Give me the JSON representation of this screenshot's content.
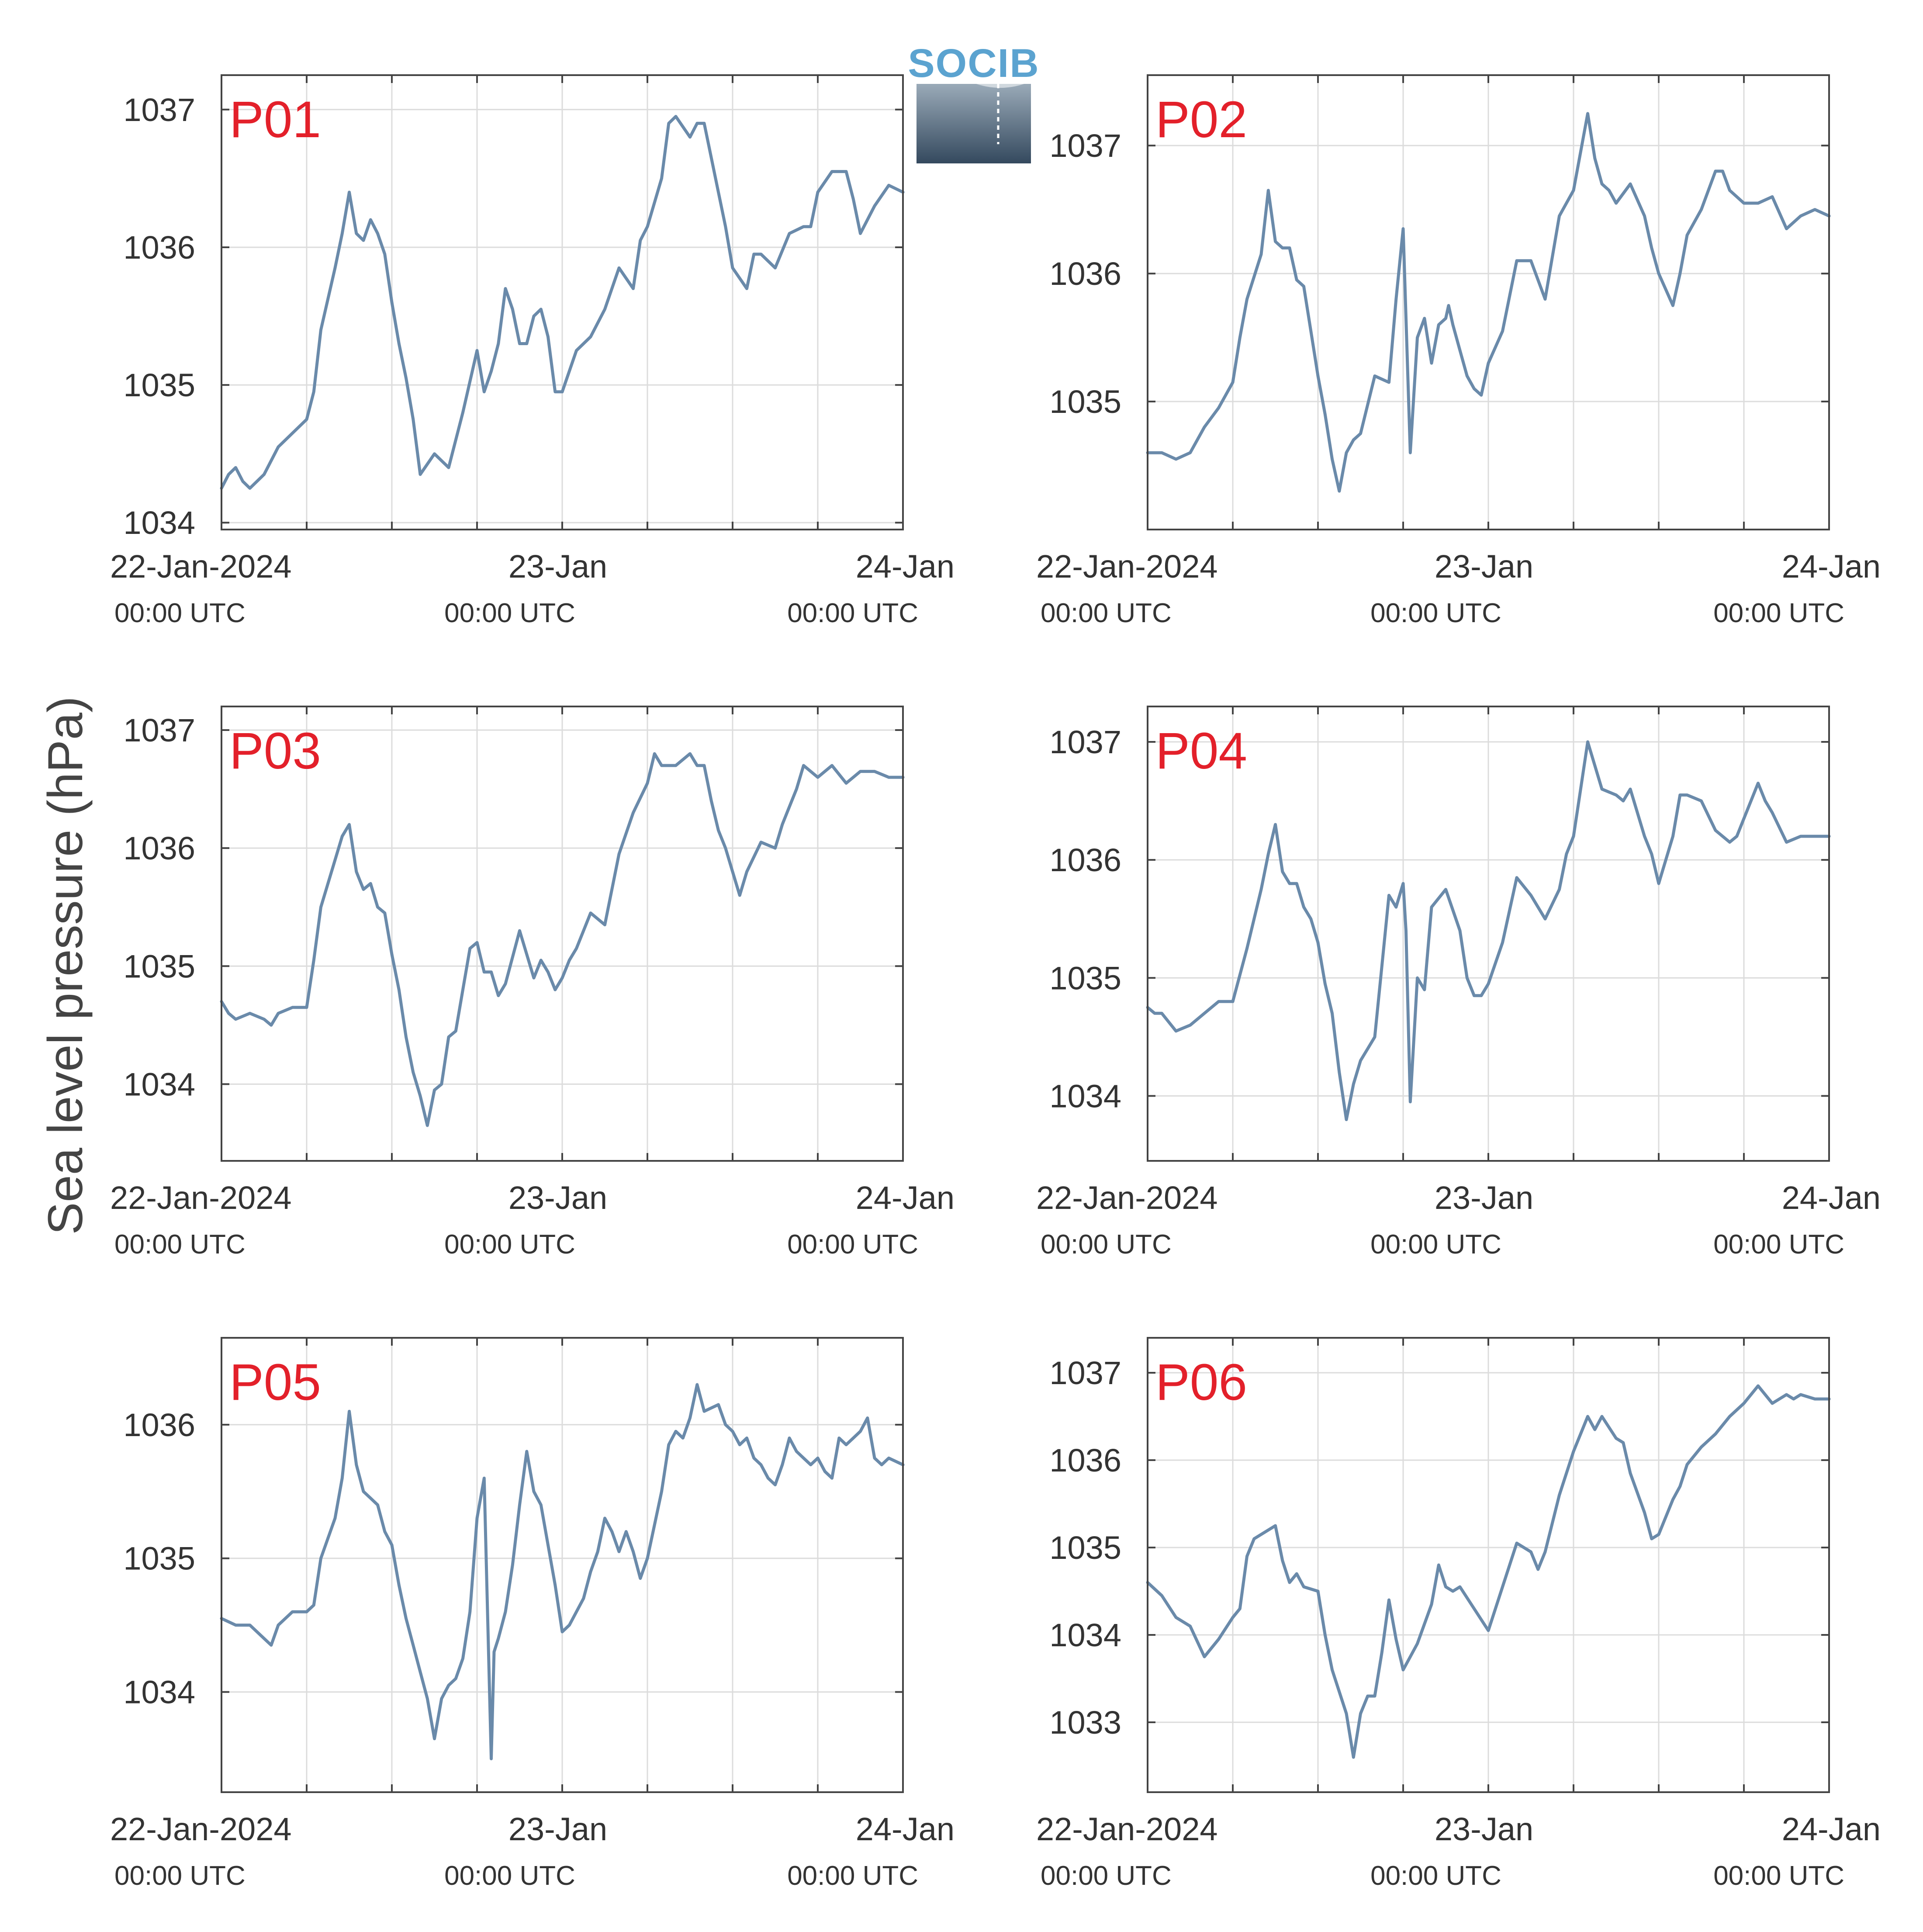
{
  "figure": {
    "ylabel": "Sea level pressure (hPa)",
    "logo_text": "SOCIB",
    "line_color": "#6a8aaa",
    "label_color": "#e3202a"
  },
  "chart_data": [
    {
      "type": "line",
      "title": "P01",
      "xlim": [
        0,
        48
      ],
      "ylim": [
        1033.95,
        1037.25
      ],
      "yticks": [
        1034,
        1035,
        1036,
        1037
      ],
      "xticks": [
        0,
        24,
        48
      ],
      "xticks_minor": [
        6,
        12,
        18,
        30,
        36,
        42
      ],
      "xtick_labels": [
        "22-Jan-2024",
        "23-Jan",
        "24-Jan"
      ],
      "xtick_sublabels": [
        "00:00 UTC",
        "00:00 UTC",
        "00:00 UTC"
      ],
      "grid": true,
      "unit": "hPa",
      "x": [
        0,
        0.5,
        1,
        1.5,
        2,
        3,
        4,
        5,
        6,
        6.5,
        7,
        8,
        8.5,
        9,
        9.5,
        10,
        10.5,
        11,
        11.5,
        12,
        12.5,
        13,
        13.5,
        14,
        15,
        16,
        17,
        18,
        18.5,
        19,
        19.5,
        20,
        20.5,
        21,
        21.5,
        22,
        22.5,
        23,
        23.5,
        24,
        25,
        26,
        27,
        28,
        29,
        29.5,
        30,
        31,
        31.5,
        32,
        33,
        33.5,
        34,
        35,
        35.5,
        36,
        37,
        37.5,
        38,
        39,
        40,
        41,
        41.5,
        42,
        43,
        44,
        44.5,
        45,
        46,
        47,
        48
      ],
      "y": [
        1034.25,
        1034.35,
        1034.4,
        1034.3,
        1034.25,
        1034.35,
        1034.55,
        1034.65,
        1034.75,
        1034.95,
        1035.4,
        1035.85,
        1036.1,
        1036.4,
        1036.1,
        1036.05,
        1036.2,
        1036.1,
        1035.95,
        1035.6,
        1035.3,
        1035.05,
        1034.75,
        1034.35,
        1034.5,
        1034.4,
        1034.8,
        1035.25,
        1034.95,
        1035.1,
        1035.3,
        1035.7,
        1035.55,
        1035.3,
        1035.3,
        1035.5,
        1035.55,
        1035.35,
        1034.95,
        1034.95,
        1035.25,
        1035.35,
        1035.55,
        1035.85,
        1035.7,
        1036.05,
        1036.15,
        1036.5,
        1036.9,
        1036.95,
        1036.8,
        1036.9,
        1036.9,
        1036.4,
        1036.15,
        1035.85,
        1035.7,
        1035.95,
        1035.95,
        1035.85,
        1036.1,
        1036.15,
        1036.15,
        1036.4,
        1036.55,
        1036.55,
        1036.35,
        1036.1,
        1036.3,
        1036.45,
        1036.4
      ]
    },
    {
      "type": "line",
      "title": "P02",
      "xlim": [
        0,
        48
      ],
      "ylim": [
        1034.0,
        1037.55
      ],
      "yticks": [
        1035,
        1036,
        1037
      ],
      "xticks": [
        0,
        24,
        48
      ],
      "xticks_minor": [
        6,
        12,
        18,
        30,
        36,
        42
      ],
      "xtick_labels": [
        "22-Jan-2024",
        "23-Jan",
        "24-Jan"
      ],
      "xtick_sublabels": [
        "00:00 UTC",
        "00:00 UTC",
        "00:00 UTC"
      ],
      "grid": true,
      "unit": "hPa",
      "x": [
        0,
        1,
        2,
        3,
        4,
        5,
        6,
        6.5,
        7,
        8,
        8.5,
        9,
        9.5,
        10,
        10.5,
        11,
        11.5,
        12,
        12.5,
        13,
        13.5,
        14,
        14.5,
        15,
        16,
        17,
        17.5,
        18,
        18.5,
        19,
        19.5,
        20,
        20.5,
        21,
        21.2,
        21.5,
        22,
        22.5,
        23,
        23.5,
        24,
        25,
        26,
        27,
        28,
        29,
        30,
        31,
        31.5,
        32,
        32.5,
        33,
        34,
        35,
        35.5,
        36,
        37,
        37.5,
        38,
        39,
        40,
        40.5,
        41,
        42,
        43,
        44,
        45,
        46,
        47,
        48
      ],
      "y": [
        1034.6,
        1034.6,
        1034.55,
        1034.6,
        1034.8,
        1034.95,
        1035.15,
        1035.5,
        1035.8,
        1036.15,
        1036.65,
        1036.25,
        1036.2,
        1036.2,
        1035.95,
        1035.9,
        1035.55,
        1035.2,
        1034.9,
        1034.55,
        1034.3,
        1034.6,
        1034.7,
        1034.75,
        1035.2,
        1035.15,
        1035.8,
        1036.35,
        1034.6,
        1035.5,
        1035.65,
        1035.3,
        1035.6,
        1035.65,
        1035.75,
        1035.6,
        1035.4,
        1035.2,
        1035.1,
        1035.05,
        1035.3,
        1035.55,
        1036.1,
        1036.1,
        1035.8,
        1036.45,
        1036.65,
        1037.25,
        1036.9,
        1036.7,
        1036.65,
        1036.55,
        1036.7,
        1036.45,
        1036.2,
        1036.0,
        1035.75,
        1036.0,
        1036.3,
        1036.5,
        1036.8,
        1036.8,
        1036.65,
        1036.55,
        1036.55,
        1036.6,
        1036.35,
        1036.45,
        1036.5,
        1036.45
      ]
    },
    {
      "type": "line",
      "title": "P03",
      "xlim": [
        0,
        48
      ],
      "ylim": [
        1033.35,
        1037.2
      ],
      "yticks": [
        1034,
        1035,
        1036,
        1037
      ],
      "xticks": [
        0,
        24,
        48
      ],
      "xticks_minor": [
        6,
        12,
        18,
        30,
        36,
        42
      ],
      "xtick_labels": [
        "22-Jan-2024",
        "23-Jan",
        "24-Jan"
      ],
      "xtick_sublabels": [
        "00:00 UTC",
        "00:00 UTC",
        "00:00 UTC"
      ],
      "grid": true,
      "unit": "hPa",
      "x": [
        0,
        0.5,
        1,
        2,
        3,
        3.5,
        4,
        5,
        6,
        6.5,
        7,
        8,
        8.5,
        9,
        9.5,
        10,
        10.5,
        11,
        11.5,
        12,
        12.5,
        13,
        13.5,
        14,
        14.5,
        15,
        15.5,
        16,
        16.5,
        17,
        17.5,
        18,
        18.5,
        19,
        19.5,
        20,
        21,
        22,
        22.5,
        23,
        23.5,
        24,
        24.5,
        25,
        25.5,
        26,
        26.5,
        27,
        28,
        29,
        30,
        30.5,
        31,
        32,
        33,
        33.5,
        34,
        34.5,
        35,
        35.5,
        36,
        36.5,
        37,
        38,
        39,
        39.5,
        40,
        40.5,
        41,
        42,
        43,
        44,
        45,
        46,
        47,
        48
      ],
      "y": [
        1034.7,
        1034.6,
        1034.55,
        1034.6,
        1034.55,
        1034.5,
        1034.6,
        1034.65,
        1034.65,
        1035.05,
        1035.5,
        1035.9,
        1036.1,
        1036.2,
        1035.8,
        1035.65,
        1035.7,
        1035.5,
        1035.45,
        1035.1,
        1034.8,
        1034.4,
        1034.1,
        1033.9,
        1033.65,
        1033.95,
        1034.0,
        1034.4,
        1034.45,
        1034.8,
        1035.15,
        1035.2,
        1034.95,
        1034.95,
        1034.75,
        1034.85,
        1035.3,
        1034.9,
        1035.05,
        1034.95,
        1034.8,
        1034.9,
        1035.05,
        1035.15,
        1035.3,
        1035.45,
        1035.4,
        1035.35,
        1035.95,
        1036.3,
        1036.55,
        1036.8,
        1036.7,
        1036.7,
        1036.8,
        1036.7,
        1036.7,
        1036.4,
        1036.15,
        1036.0,
        1035.8,
        1035.6,
        1035.8,
        1036.05,
        1036.0,
        1036.2,
        1036.35,
        1036.5,
        1036.7,
        1036.6,
        1036.7,
        1036.55,
        1036.65,
        1036.65,
        1036.6,
        1036.6
      ]
    },
    {
      "type": "line",
      "title": "P04",
      "xlim": [
        0,
        48
      ],
      "ylim": [
        1033.45,
        1037.3
      ],
      "yticks": [
        1034,
        1035,
        1036,
        1037
      ],
      "xticks": [
        0,
        24,
        48
      ],
      "xticks_minor": [
        6,
        12,
        18,
        30,
        36,
        42
      ],
      "xtick_labels": [
        "22-Jan-2024",
        "23-Jan",
        "24-Jan"
      ],
      "xtick_sublabels": [
        "00:00 UTC",
        "00:00 UTC",
        "00:00 UTC"
      ],
      "grid": true,
      "unit": "hPa",
      "x": [
        0,
        0.5,
        1,
        2,
        3,
        4,
        5,
        6,
        7,
        8,
        8.5,
        9,
        9.5,
        10,
        10.5,
        11,
        11.5,
        12,
        12.5,
        13,
        13.5,
        14,
        14.5,
        15,
        15.5,
        16,
        16.5,
        17,
        17.5,
        18,
        18.2,
        18.5,
        19,
        19.5,
        20,
        21,
        22,
        22.5,
        23,
        23.5,
        24,
        25,
        26,
        27,
        28,
        29,
        29.5,
        30,
        30.5,
        31,
        32,
        33,
        33.5,
        34,
        35,
        35.5,
        36,
        37,
        37.5,
        38,
        39,
        40,
        41,
        41.5,
        42,
        43,
        43.5,
        44,
        45,
        46,
        47,
        48
      ],
      "y": [
        1034.75,
        1034.7,
        1034.7,
        1034.55,
        1034.6,
        1034.7,
        1034.8,
        1034.8,
        1035.25,
        1035.75,
        1036.05,
        1036.3,
        1035.9,
        1035.8,
        1035.8,
        1035.6,
        1035.5,
        1035.3,
        1034.95,
        1034.7,
        1034.2,
        1033.8,
        1034.1,
        1034.3,
        1034.4,
        1034.5,
        1035.1,
        1035.7,
        1035.6,
        1035.8,
        1035.4,
        1033.95,
        1035.0,
        1034.9,
        1035.6,
        1035.75,
        1035.4,
        1035.0,
        1034.85,
        1034.85,
        1034.95,
        1035.3,
        1035.85,
        1035.7,
        1035.5,
        1035.75,
        1036.05,
        1036.2,
        1036.6,
        1037.0,
        1036.6,
        1036.55,
        1036.5,
        1036.6,
        1036.2,
        1036.05,
        1035.8,
        1036.2,
        1036.55,
        1036.55,
        1036.5,
        1036.25,
        1036.15,
        1036.2,
        1036.35,
        1036.65,
        1036.5,
        1036.4,
        1036.15,
        1036.2,
        1036.2,
        1036.2
      ]
    },
    {
      "type": "line",
      "title": "P05",
      "xlim": [
        0,
        48
      ],
      "ylim": [
        1033.25,
        1036.65
      ],
      "yticks": [
        1034,
        1035,
        1036
      ],
      "xticks": [
        0,
        24,
        48
      ],
      "xticks_minor": [
        6,
        12,
        18,
        30,
        36,
        42
      ],
      "xtick_labels": [
        "22-Jan-2024",
        "23-Jan",
        "24-Jan"
      ],
      "xtick_sublabels": [
        "00:00 UTC",
        "00:00 UTC",
        "00:00 UTC"
      ],
      "grid": true,
      "unit": "hPa",
      "x": [
        0,
        1,
        2,
        3,
        3.5,
        4,
        5,
        6,
        6.5,
        7,
        8,
        8.5,
        9,
        9.5,
        10,
        10.5,
        11,
        11.5,
        12,
        12.5,
        13,
        13.5,
        14,
        14.5,
        15,
        15.5,
        16,
        16.5,
        17,
        17.5,
        18,
        18.5,
        19,
        19.2,
        19.5,
        20,
        20.5,
        21,
        21.5,
        22,
        22.5,
        23,
        23.5,
        24,
        24.5,
        25,
        25.5,
        26,
        26.5,
        27,
        27.5,
        28,
        28.5,
        29,
        29.5,
        30,
        31,
        31.5,
        32,
        32.5,
        33,
        33.5,
        34,
        35,
        35.5,
        36,
        36.5,
        37,
        37.5,
        38,
        38.5,
        39,
        39.5,
        40,
        40.5,
        41,
        41.5,
        42,
        42.5,
        43,
        43.5,
        44,
        44.5,
        45,
        45.5,
        46,
        46.5,
        47,
        48
      ],
      "y": [
        1034.55,
        1034.5,
        1034.5,
        1034.4,
        1034.35,
        1034.5,
        1034.6,
        1034.6,
        1034.65,
        1035.0,
        1035.3,
        1035.6,
        1036.1,
        1035.7,
        1035.5,
        1035.45,
        1035.4,
        1035.2,
        1035.1,
        1034.8,
        1034.55,
        1034.35,
        1034.15,
        1033.95,
        1033.65,
        1033.95,
        1034.05,
        1034.1,
        1034.25,
        1034.6,
        1035.3,
        1035.6,
        1033.5,
        1034.3,
        1034.4,
        1034.6,
        1034.95,
        1035.4,
        1035.8,
        1035.5,
        1035.4,
        1035.1,
        1034.8,
        1034.45,
        1034.5,
        1034.6,
        1034.7,
        1034.9,
        1035.05,
        1035.3,
        1035.2,
        1035.05,
        1035.2,
        1035.05,
        1034.85,
        1035.0,
        1035.5,
        1035.85,
        1035.95,
        1035.9,
        1036.05,
        1036.3,
        1036.1,
        1036.15,
        1036.0,
        1035.95,
        1035.85,
        1035.9,
        1035.75,
        1035.7,
        1035.6,
        1035.55,
        1035.7,
        1035.9,
        1035.8,
        1035.75,
        1035.7,
        1035.75,
        1035.65,
        1035.6,
        1035.9,
        1035.85,
        1035.9,
        1035.95,
        1036.05,
        1035.75,
        1035.7,
        1035.75,
        1035.7
      ]
    },
    {
      "type": "line",
      "title": "P06",
      "xlim": [
        0,
        48
      ],
      "ylim": [
        1032.2,
        1037.4
      ],
      "yticks": [
        1033,
        1034,
        1035,
        1036,
        1037
      ],
      "xticks": [
        0,
        24,
        48
      ],
      "xticks_minor": [
        6,
        12,
        18,
        30,
        36,
        42
      ],
      "xtick_labels": [
        "22-Jan-2024",
        "23-Jan",
        "24-Jan"
      ],
      "xtick_sublabels": [
        "00:00 UTC",
        "00:00 UTC",
        "00:00 UTC"
      ],
      "grid": true,
      "unit": "hPa",
      "x": [
        0,
        1,
        2,
        3,
        4,
        5,
        6,
        6.5,
        7,
        7.5,
        8,
        9,
        9.5,
        10,
        10.5,
        11,
        12,
        12.5,
        13,
        14,
        14.5,
        15,
        15.5,
        16,
        16.5,
        17,
        17.5,
        18,
        18.5,
        19,
        20,
        20.5,
        21,
        21.5,
        22,
        23,
        24,
        25,
        26,
        27,
        27.5,
        28,
        29,
        30,
        31,
        31.5,
        32,
        33,
        33.5,
        34,
        35,
        35.5,
        36,
        37,
        37.5,
        38,
        39,
        40,
        41,
        42,
        43,
        44,
        45,
        45.5,
        46,
        47,
        48
      ],
      "y": [
        1034.6,
        1034.45,
        1034.2,
        1034.1,
        1033.75,
        1033.95,
        1034.2,
        1034.3,
        1034.9,
        1035.1,
        1035.15,
        1035.25,
        1034.85,
        1034.6,
        1034.7,
        1034.55,
        1034.5,
        1034.0,
        1033.6,
        1033.1,
        1032.6,
        1033.1,
        1033.3,
        1033.3,
        1033.8,
        1034.4,
        1033.95,
        1033.6,
        1033.75,
        1033.9,
        1034.35,
        1034.8,
        1034.55,
        1034.5,
        1034.55,
        1034.3,
        1034.05,
        1034.55,
        1035.05,
        1034.95,
        1034.75,
        1034.95,
        1035.6,
        1036.1,
        1036.5,
        1036.35,
        1036.5,
        1036.25,
        1036.2,
        1035.85,
        1035.4,
        1035.1,
        1035.15,
        1035.55,
        1035.7,
        1035.95,
        1036.15,
        1036.3,
        1036.5,
        1036.65,
        1036.85,
        1036.65,
        1036.75,
        1036.7,
        1036.75,
        1036.7,
        1036.7
      ]
    }
  ]
}
